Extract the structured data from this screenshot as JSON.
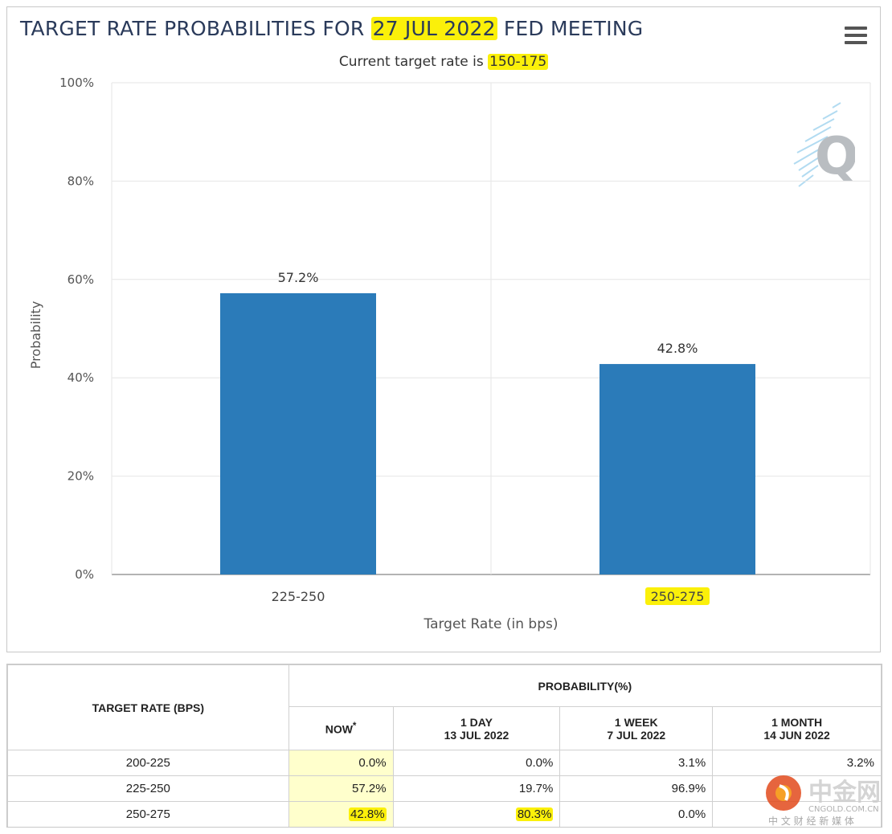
{
  "chart": {
    "title_prefix": "TARGET RATE PROBABILITIES FOR ",
    "title_date": "27 JUL 2022",
    "title_suffix": " FED MEETING",
    "subtitle_prefix": "Current target rate is ",
    "subtitle_rate": "150-175",
    "menu_icon": "hamburger-menu-icon",
    "watermark": "Q"
  },
  "chart_data": {
    "type": "bar",
    "categories": [
      "225-250",
      "250-275"
    ],
    "values": [
      57.2,
      42.8
    ],
    "data_labels": [
      "57.2%",
      "42.8%"
    ],
    "xlabel": "Target Rate (in bps)",
    "ylabel": "Probability",
    "ylim": [
      0,
      100
    ],
    "yticks": [
      "0%",
      "20%",
      "40%",
      "60%",
      "80%",
      "100%"
    ],
    "bar_color": "#2b7bb9",
    "grid": true,
    "highlight_color": "#fbf00a",
    "highlighted_category": "250-275"
  },
  "table": {
    "rate_header": "TARGET RATE (BPS)",
    "prob_header": "PROBABILITY(%)",
    "columns": [
      {
        "label": "NOW",
        "sup": "*",
        "date": ""
      },
      {
        "label": "1 DAY",
        "sup": "",
        "date": "13 JUL 2022"
      },
      {
        "label": "1 WEEK",
        "sup": "",
        "date": "7 JUL 2022"
      },
      {
        "label": "1 MONTH",
        "sup": "",
        "date": "14 JUN 2022"
      }
    ],
    "rows": [
      {
        "rate": "200-225",
        "values": [
          "0.0%",
          "0.0%",
          "3.1%",
          "3.2%"
        ]
      },
      {
        "rate": "225-250",
        "values": [
          "57.2%",
          "19.7%",
          "96.9%",
          ""
        ]
      },
      {
        "rate": "250-275",
        "values": [
          "42.8%",
          "80.3%",
          "0.0%",
          ""
        ]
      }
    ]
  },
  "watermark_logo": {
    "name": "中金网",
    "url_text": "CNGOLD.COM.CN",
    "tagline": "中 文 财 经 新 媒 体"
  }
}
